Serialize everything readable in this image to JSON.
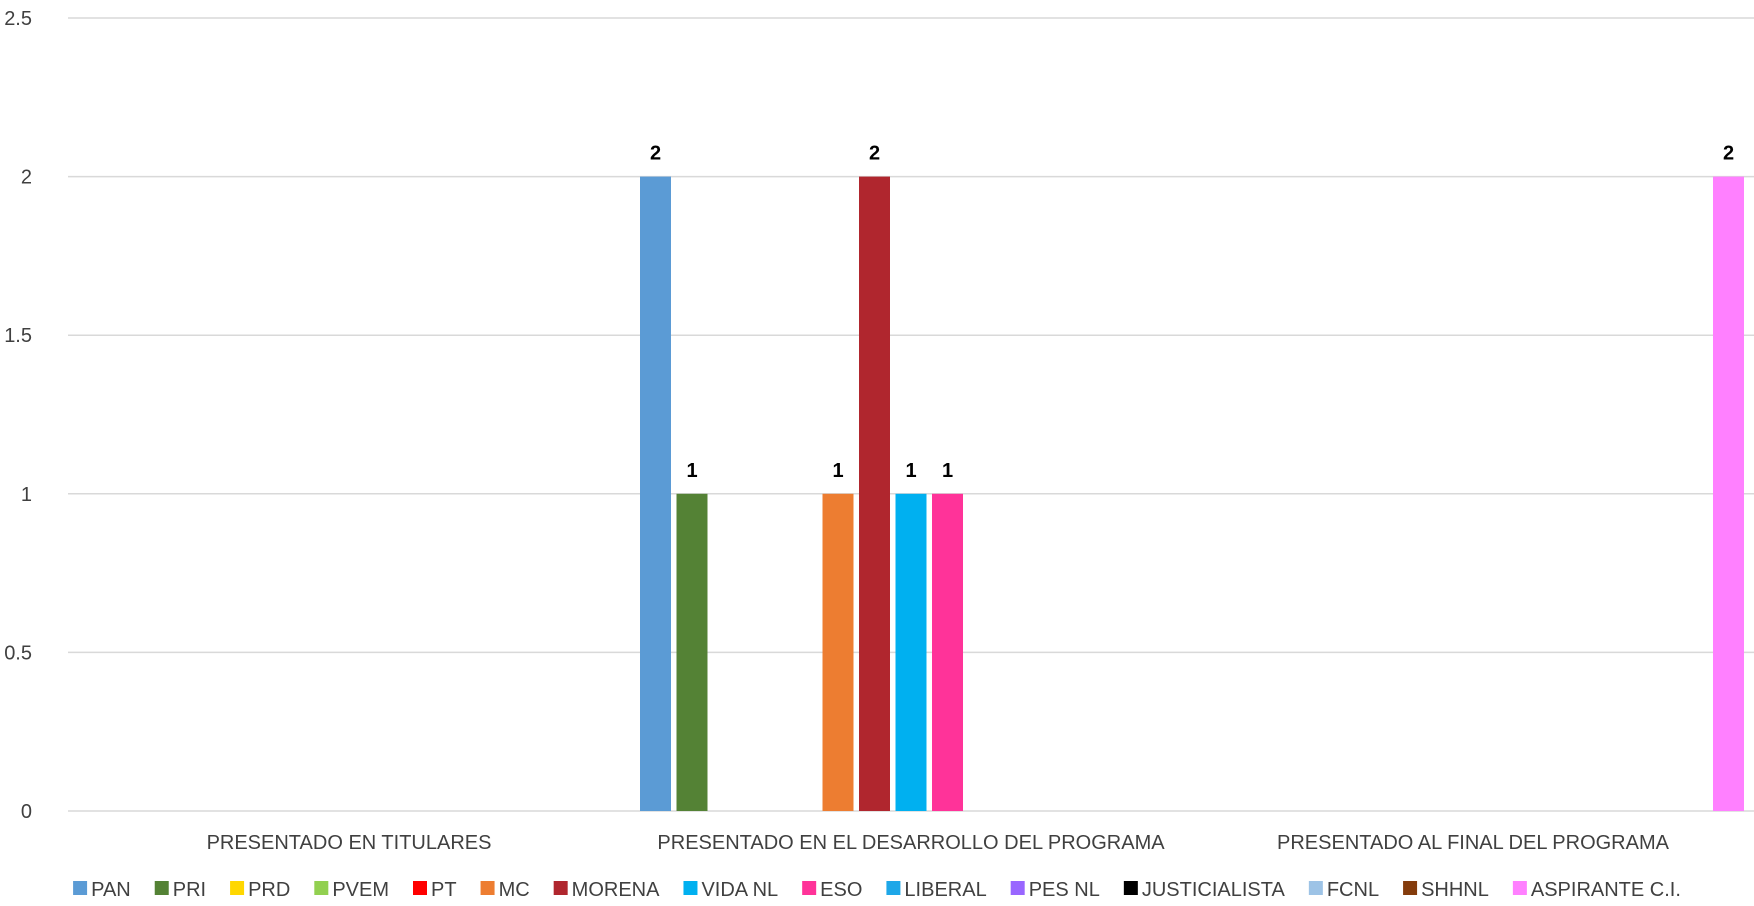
{
  "chart_data": {
    "type": "bar",
    "title": "",
    "xlabel": "",
    "ylabel": "",
    "ylim": [
      0,
      2.5
    ],
    "yticks": [
      "0",
      "0.5",
      "1",
      "1.5",
      "2",
      "2.5"
    ],
    "grid": true,
    "legend_position": "bottom",
    "categories": [
      "PRESENTADO EN TITULARES",
      "PRESENTADO EN EL DESARROLLO DEL PROGRAMA",
      "PRESENTADO AL FINAL DEL PROGRAMA"
    ],
    "series": [
      {
        "name": "PAN",
        "color": "#5b9bd5",
        "values": [
          0,
          2,
          0
        ]
      },
      {
        "name": "PRI",
        "color": "#548235",
        "values": [
          0,
          1,
          0
        ]
      },
      {
        "name": "PRD",
        "color": "#ffd700",
        "values": [
          0,
          0,
          0
        ]
      },
      {
        "name": "PVEM",
        "color": "#92d050",
        "values": [
          0,
          0,
          0
        ]
      },
      {
        "name": "PT",
        "color": "#ff0000",
        "values": [
          0,
          0,
          0
        ]
      },
      {
        "name": "MC",
        "color": "#ed7d31",
        "values": [
          0,
          1,
          0
        ]
      },
      {
        "name": "MORENA",
        "color": "#b0262e",
        "values": [
          0,
          2,
          0
        ]
      },
      {
        "name": "VIDA NL",
        "color": "#00b0f0",
        "values": [
          0,
          1,
          0
        ]
      },
      {
        "name": "ESO",
        "color": "#ff3399",
        "values": [
          0,
          1,
          0
        ]
      },
      {
        "name": "LIBERAL",
        "color": "#1ea7e8",
        "values": [
          0,
          0,
          0
        ]
      },
      {
        "name": "PES NL",
        "color": "#9966ff",
        "values": [
          0,
          0,
          0
        ]
      },
      {
        "name": "JUSTICIALISTA",
        "color": "#000000",
        "values": [
          0,
          0,
          0
        ]
      },
      {
        "name": "FCNL",
        "color": "#9dc3e6",
        "values": [
          0,
          0,
          0
        ]
      },
      {
        "name": "SHHNL",
        "color": "#843c0c",
        "values": [
          0,
          0,
          0
        ]
      },
      {
        "name": "ASPIRANTE C.I.",
        "color": "#ff80ff",
        "values": [
          0,
          0,
          2
        ]
      }
    ]
  }
}
